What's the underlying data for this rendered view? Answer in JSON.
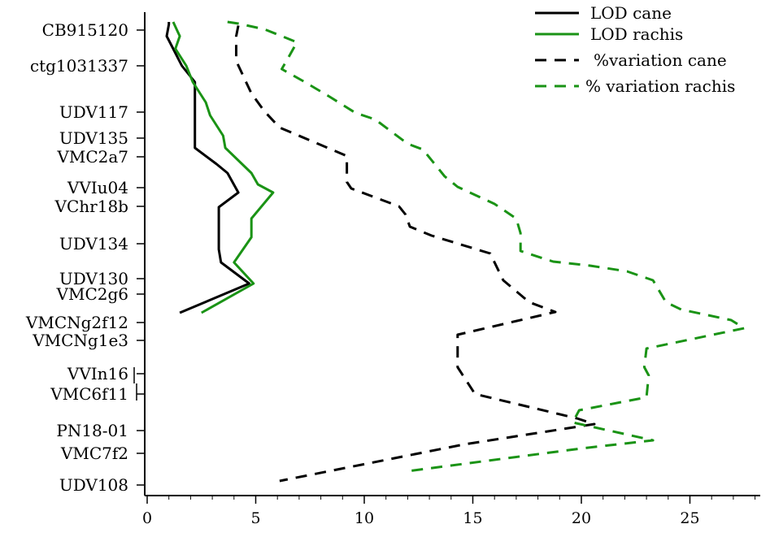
{
  "chart_data": {
    "type": "line",
    "orientation": "horizontal",
    "markers": [
      "CB915120",
      "ctg1031337",
      "UDV117",
      "UDV135",
      "VMC2a7",
      "VVIu04",
      "VChr18b",
      "UDV134",
      "UDV130",
      "VMC2g6",
      "VMCNg2f12",
      "VMCNg1e3",
      "VVIn16",
      "VMC6f11",
      "PN18-01",
      "VMC7f2",
      "UDV108"
    ],
    "xlim": [
      0,
      28.5
    ],
    "xticks": [
      "0",
      "5",
      "10",
      "15",
      "20",
      "25"
    ],
    "grid": false,
    "legend_position": "top-right",
    "series": [
      {
        "name": "LOD cane",
        "color": "#000000",
        "dash": "solid",
        "points": [
          [
            1.0,
            0
          ],
          [
            1.0,
            3
          ],
          [
            0.9,
            17.5
          ],
          [
            1.2,
            33
          ],
          [
            1.6,
            54
          ],
          [
            2.2,
            74
          ],
          [
            2.2,
            99
          ],
          [
            2.2,
            115
          ],
          [
            2.2,
            155
          ],
          [
            3.2,
            175
          ],
          [
            3.7,
            186
          ],
          [
            4.2,
            210
          ],
          [
            3.3,
            228
          ],
          [
            3.3,
            280
          ],
          [
            3.4,
            296
          ],
          [
            4.7,
            322
          ],
          [
            1.5,
            358
          ]
        ]
      },
      {
        "name": "LOD rachis",
        "color": "#1a9315",
        "dash": "solid",
        "points": [
          [
            1.2,
            0
          ],
          [
            1.5,
            17.5
          ],
          [
            1.3,
            33
          ],
          [
            1.8,
            54
          ],
          [
            2.1,
            74
          ],
          [
            2.7,
            99
          ],
          [
            2.9,
            115
          ],
          [
            3.5,
            140
          ],
          [
            3.6,
            155
          ],
          [
            4.8,
            186
          ],
          [
            5.1,
            200
          ],
          [
            5.8,
            210
          ],
          [
            4.8,
            242
          ],
          [
            4.8,
            265
          ],
          [
            4.0,
            296
          ],
          [
            4.9,
            322
          ],
          [
            2.5,
            358
          ]
        ]
      },
      {
        "name": "%variation cane",
        "color": "#000000",
        "dash": "dashed",
        "points": [
          [
            4.2,
            4.5
          ],
          [
            4.1,
            17.5
          ],
          [
            4.1,
            48
          ],
          [
            4.8,
            88
          ],
          [
            5.4,
            110
          ],
          [
            6.1,
            130
          ],
          [
            9.2,
            165
          ],
          [
            9.2,
            197
          ],
          [
            9.4,
            205
          ],
          [
            11.6,
            227
          ],
          [
            11.9,
            237
          ],
          [
            12.1,
            252
          ],
          [
            13.1,
            263
          ],
          [
            15.8,
            285
          ],
          [
            16.4,
            318
          ],
          [
            17.6,
            345
          ],
          [
            18.8,
            357
          ],
          [
            14.3,
            385
          ],
          [
            14.3,
            405
          ],
          [
            14.3,
            410
          ],
          [
            14.3,
            425
          ],
          [
            15.1,
            458
          ],
          [
            19.8,
            488
          ],
          [
            20.6,
            495
          ],
          [
            14.6,
            520
          ],
          [
            6.1,
            565
          ]
        ]
      },
      {
        "name": "% variation rachis",
        "color": "#1a9315",
        "dash": "dashed",
        "points": [
          [
            3.7,
            0
          ],
          [
            4.2,
            2
          ],
          [
            5.4,
            9
          ],
          [
            6.9,
            25
          ],
          [
            6.5,
            44
          ],
          [
            6.2,
            58
          ],
          [
            7.2,
            73
          ],
          [
            8.4,
            92
          ],
          [
            9.6,
            112
          ],
          [
            10.5,
            120
          ],
          [
            12.0,
            150
          ],
          [
            12.7,
            157
          ],
          [
            13.7,
            190
          ],
          [
            14.3,
            203
          ],
          [
            16.0,
            224
          ],
          [
            17.0,
            242
          ],
          [
            17.2,
            260
          ],
          [
            17.2,
            282
          ],
          [
            18.7,
            295
          ],
          [
            20.4,
            300
          ],
          [
            22.1,
            307
          ],
          [
            23.3,
            318
          ],
          [
            23.9,
            345
          ],
          [
            24.6,
            354
          ],
          [
            26.9,
            367
          ],
          [
            27.5,
            377
          ],
          [
            23.0,
            402
          ],
          [
            22.9,
            425
          ],
          [
            23.1,
            435
          ],
          [
            23.0,
            462
          ],
          [
            19.9,
            478
          ],
          [
            19.6,
            493
          ],
          [
            23.3,
            515
          ],
          [
            20.0,
            525
          ],
          [
            12.0,
            553
          ]
        ]
      }
    ]
  }
}
